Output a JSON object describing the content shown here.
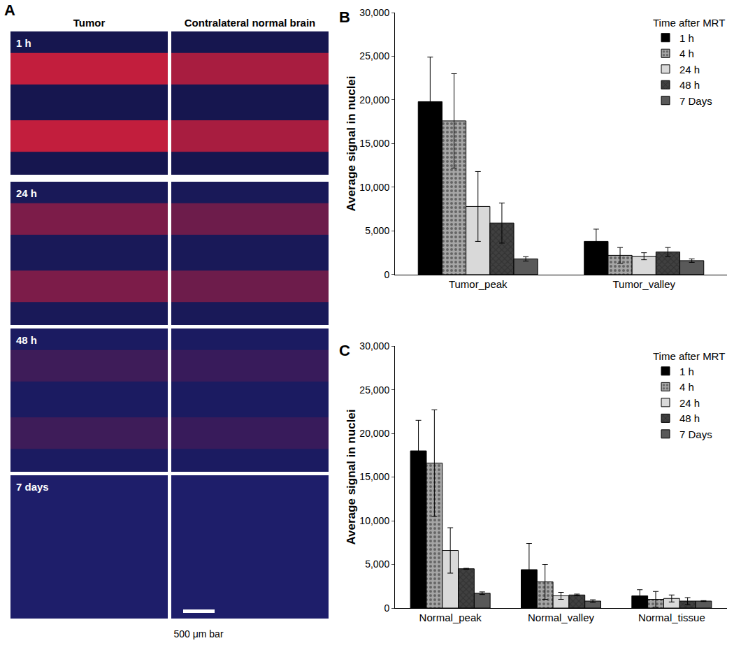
{
  "image_panel": {
    "panel_label": "A",
    "columns": [
      "Tumor",
      "Contralateral normal brain"
    ],
    "rows": [
      "1 h",
      "24 h",
      "48 h",
      "7 days"
    ],
    "scale_bar": "500 μm bar"
  },
  "chart_data": [
    {
      "type": "bar",
      "panel_label": "B",
      "categories": [
        "Tumor_peak",
        "Tumor_valley"
      ],
      "series": [
        {
          "name": "1 h",
          "color": "#000000",
          "values": [
            19800,
            3800
          ],
          "errors": [
            5100,
            1400
          ]
        },
        {
          "name": "4 h",
          "color": "#a6a6a6",
          "values": [
            17600,
            2200
          ],
          "errors": [
            5400,
            900
          ]
        },
        {
          "name": "24 h",
          "color": "#d9d9d9",
          "values": [
            7800,
            2100
          ],
          "errors": [
            4000,
            400
          ]
        },
        {
          "name": "48 h",
          "color": "#404040",
          "values": [
            5900,
            2600
          ],
          "errors": [
            2300,
            500
          ]
        },
        {
          "name": "7 Days",
          "color": "#595959",
          "values": [
            1800,
            1600
          ],
          "errors": [
            250,
            200
          ]
        }
      ],
      "y_label": "Average signal in nuclei",
      "ylim": [
        0,
        30000
      ],
      "yticks": [
        0,
        {
          "value": 5000,
          "label": "5,000"
        },
        {
          "value": 10000,
          "label": "10,000"
        },
        {
          "value": 15000,
          "label": "15,000"
        },
        {
          "value": 20000,
          "label": "20,000"
        },
        {
          "value": 25000,
          "label": "25,000"
        },
        {
          "value": 30000,
          "label": "30,000"
        }
      ],
      "grid": false,
      "legend": "upper right",
      "legend_title": "Time after MRT"
    },
    {
      "type": "bar",
      "panel_label": "C",
      "categories": [
        "Normal_peak",
        "Normal_valley",
        "Normal_tissue"
      ],
      "series": [
        {
          "name": "1 h",
          "color": "#000000",
          "values": [
            18000,
            4400,
            1400
          ],
          "errors": [
            3500,
            3000,
            700
          ]
        },
        {
          "name": "4 h",
          "color": "#a6a6a6",
          "values": [
            16600,
            3000,
            1000
          ],
          "errors": [
            6100,
            2000,
            900
          ]
        },
        {
          "name": "24 h",
          "color": "#d9d9d9",
          "values": [
            6600,
            1400,
            1100
          ],
          "errors": [
            2600,
            400,
            400
          ]
        },
        {
          "name": "48 h",
          "color": "#404040",
          "values": [
            4500,
            1500,
            800
          ],
          "errors": [
            50,
            100,
            400
          ]
        },
        {
          "name": "7 Days",
          "color": "#595959",
          "values": [
            1700,
            800,
            800
          ],
          "errors": [
            150,
            150,
            50
          ]
        }
      ],
      "y_label": "Average signal in nuclei",
      "ylim": [
        0,
        30000
      ],
      "yticks": [
        0,
        {
          "value": 5000,
          "label": "5,000"
        },
        {
          "value": 10000,
          "label": "10,000"
        },
        {
          "value": 15000,
          "label": "15,000"
        },
        {
          "value": 20000,
          "label": "20,000"
        },
        {
          "value": 25000,
          "label": "25,000"
        },
        {
          "value": 30000,
          "label": "30,000"
        }
      ],
      "grid": false,
      "legend": "upper right",
      "legend_title": "Time after MRT"
    }
  ]
}
